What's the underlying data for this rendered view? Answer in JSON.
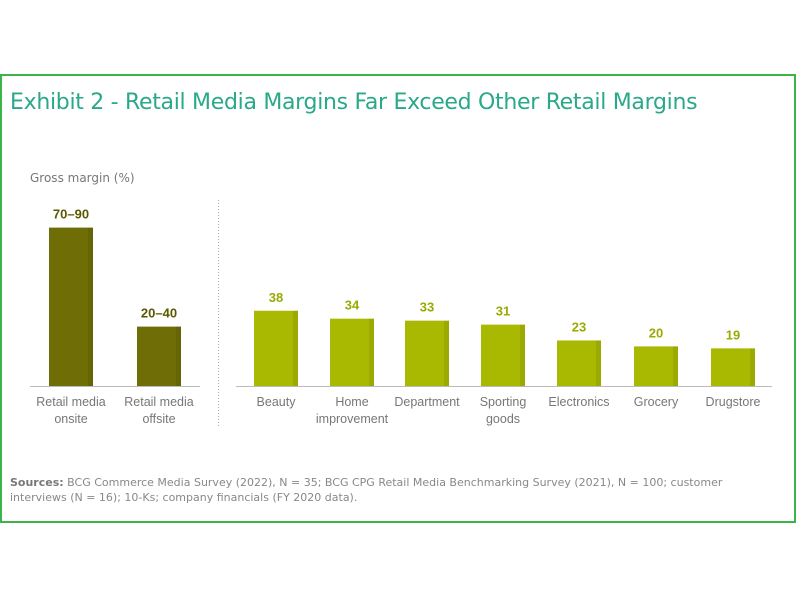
{
  "chart_data": {
    "type": "bar",
    "title": "Exhibit 2 - Retail Media Margins Far Exceed Other Retail Margins",
    "ylabel": "Gross margin (%)",
    "xlabel": "",
    "ylim": [
      0,
      90
    ],
    "grid": false,
    "categories": [
      [
        "Retail media",
        "onsite"
      ],
      [
        "Retail media",
        "offsite"
      ],
      [
        "Beauty"
      ],
      [
        "Home",
        "improvement"
      ],
      [
        "Department"
      ],
      [
        "Sporting",
        "goods"
      ],
      [
        "Electronics"
      ],
      [
        "Grocery"
      ],
      [
        "Drugstore"
      ]
    ],
    "values": [
      80,
      30,
      38,
      34,
      33,
      31,
      23,
      20,
      19
    ],
    "ranges": [
      [
        70,
        90
      ],
      [
        20,
        40
      ],
      null,
      null,
      null,
      null,
      null,
      null,
      null
    ],
    "labels": [
      "70–90",
      "20–40",
      "38",
      "34",
      "33",
      "31",
      "23",
      "20",
      "19"
    ],
    "groups": [
      "retail-media",
      "retail-media",
      "retail",
      "retail",
      "retail",
      "retail",
      "retail",
      "retail",
      "retail"
    ]
  },
  "colors": {
    "retail-media": "#6f6d05",
    "retail-media-label": "#5b5900",
    "retail": "#a9b800",
    "retail-label": "#9aaa00",
    "title": "#2aa88a",
    "frame": "#3cb44a"
  },
  "sources": {
    "label": "Sources:",
    "text": " BCG Commerce Media Survey (2022), N = 35; BCG CPG Retail Media Benchmarking Survey (2021), N = 100; customer interviews (N = 16); 10-Ks; company financials (FY 2020 data)."
  }
}
